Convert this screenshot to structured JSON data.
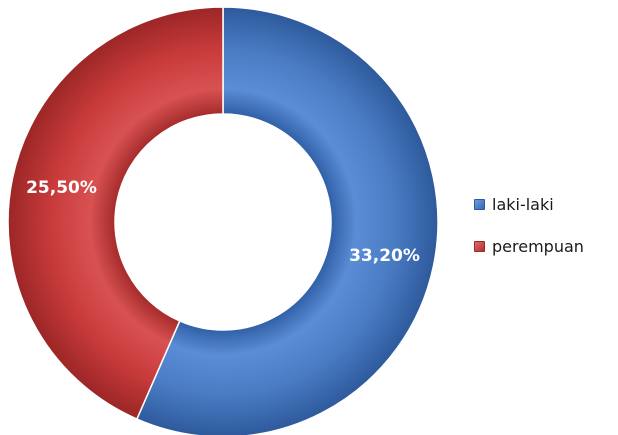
{
  "chart_data": {
    "type": "pie",
    "style": "donut",
    "title": "",
    "legend_position": "right",
    "slices": [
      {
        "name": "laki-laki",
        "value": 33.2,
        "label": "33,20%",
        "color": "#4a7cc4"
      },
      {
        "name": "perempuan",
        "value": 25.5,
        "label": "25,50%",
        "color": "#c93b3b"
      }
    ]
  }
}
